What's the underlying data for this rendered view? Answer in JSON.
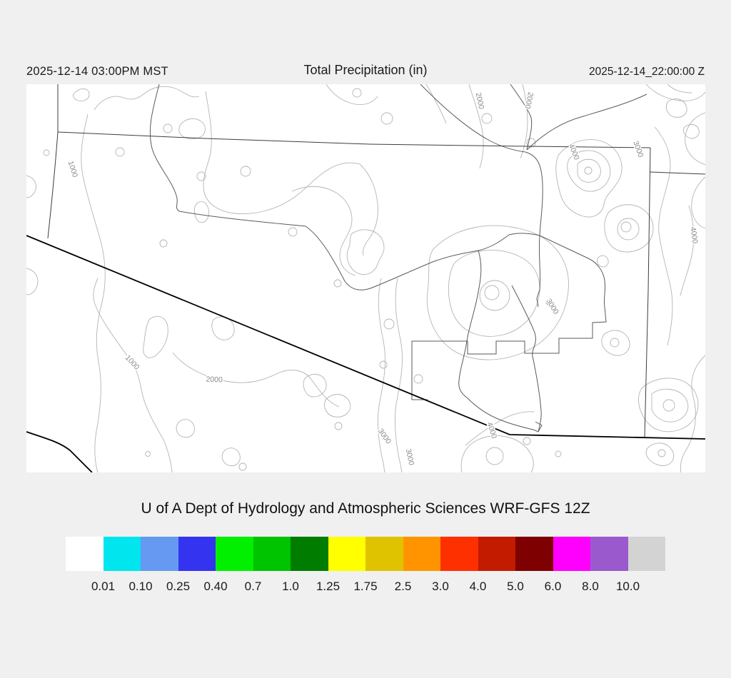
{
  "header": {
    "left_timestamp": "2025-12-14 03:00PM MST",
    "title": "Total Precipitation (in)",
    "right_timestamp": "2025-12-14_22:00:00 Z"
  },
  "caption": "U of A Dept of Hydrology and Atmospheric Sciences WRF-GFS 12Z",
  "map": {
    "contour_labels": [
      "1000",
      "1000",
      "2000",
      "2000",
      "2000",
      "4000",
      "3000",
      "3000",
      "4000",
      "3000",
      "3000",
      "4000"
    ],
    "features": {
      "contour_interval_units": "elevation contours labeled 1000-4000",
      "boundaries": "state borders, rivers, US-Mexico border"
    }
  },
  "colorbar": {
    "colors": [
      "#ffffff",
      "#00e5ee",
      "#6699f2",
      "#3333f0",
      "#00f000",
      "#00c400",
      "#007d00",
      "#ffff00",
      "#e0c300",
      "#ff9400",
      "#ff3000",
      "#c21b00",
      "#7e0000",
      "#ff00ff",
      "#9a5ace",
      "#d3d3d3"
    ],
    "tick_labels": [
      "0.01",
      "0.10",
      "0.25",
      "0.40",
      "0.7",
      "1.0",
      "1.25",
      "1.75",
      "2.5",
      "3.0",
      "4.0",
      "5.0",
      "6.0",
      "8.0",
      "10.0"
    ],
    "units": "in"
  },
  "colors": {
    "page_background": "#f0f0f0",
    "map_background": "#ffffff",
    "contour_line": "#b4b4b4",
    "border_line": "#3d3d3d",
    "river_line": "#5a5a5a",
    "thick_border": "#000000",
    "text": "#1a1a1a"
  }
}
